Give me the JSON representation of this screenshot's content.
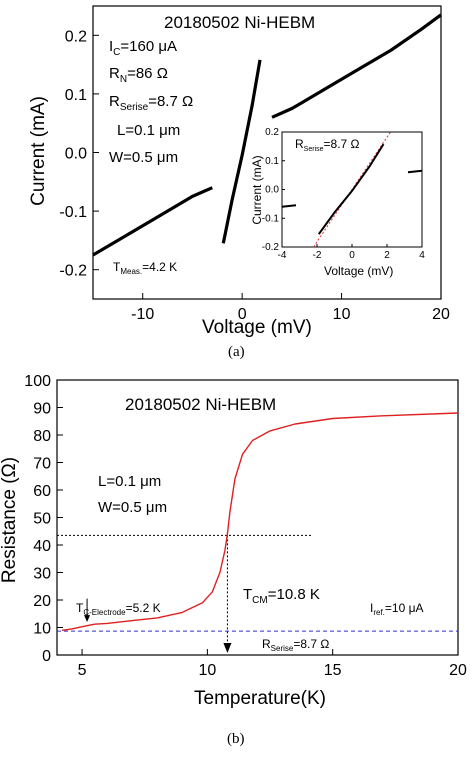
{
  "chart_data": [
    {
      "id": "a",
      "type": "line",
      "caption": "(a)",
      "title": "20180502 Ni-HEBM",
      "xlabel": "Voltage (mV)",
      "ylabel": "Current (mA)",
      "xlim": [
        -15,
        20
      ],
      "ylim": [
        -0.25,
        0.25
      ],
      "xticks": [
        -10,
        0,
        10,
        20
      ],
      "xtick_labels": [
        "-10",
        "0",
        "10",
        "20"
      ],
      "yticks": [
        -0.2,
        -0.1,
        0.0,
        0.1,
        0.2
      ],
      "ytick_labels": [
        "-0.2",
        "-0.1",
        "0.0",
        "0.1",
        "0.2"
      ],
      "grid": false,
      "annotations": {
        "ic": {
          "main": "I",
          "sub": "C",
          "rest": "=160 μA"
        },
        "rn": {
          "main": "R",
          "sub": "N",
          "rest": "=86 Ω"
        },
        "rs": {
          "main": "R",
          "sub": "Serise",
          "rest": "=8.7 Ω"
        },
        "l": "L=0.1 μm",
        "w": "W=0.5 μm",
        "tmeas": {
          "main": "T",
          "sub": "Meas.",
          "rest": "=4.2 K"
        }
      },
      "series": [
        {
          "values": [
            [
              -15,
              -0.175
            ],
            [
              -12,
              -0.145
            ],
            [
              -9,
              -0.115
            ],
            [
              -6,
              -0.085
            ],
            [
              -5,
              -0.075
            ],
            [
              -3,
              -0.06
            ]
          ]
        },
        {
          "values": [
            [
              -1.9,
              -0.155
            ],
            [
              -1,
              -0.08
            ],
            [
              0,
              -0.005
            ],
            [
              1,
              0.08
            ],
            [
              1.8,
              0.158
            ]
          ]
        },
        {
          "values": [
            [
              3,
              0.06
            ],
            [
              5,
              0.075
            ],
            [
              6,
              0.085
            ],
            [
              9,
              0.115
            ],
            [
              12,
              0.145
            ],
            [
              15,
              0.175
            ],
            [
              18,
              0.21
            ],
            [
              20,
              0.235
            ]
          ]
        }
      ],
      "inset": {
        "xlabel": "Voltage (mV)",
        "ylabel": "Current (mA)",
        "xlim": [
          -4,
          4
        ],
        "ylim": [
          -0.2,
          0.2
        ],
        "xticks": [
          -4,
          -2,
          0,
          2,
          4
        ],
        "xtick_labels": [
          "-4",
          "-2",
          "0",
          "2",
          "4"
        ],
        "yticks": [
          -0.2,
          -0.1,
          0.0,
          0.1,
          0.2
        ],
        "ytick_labels": [
          "-0.2",
          "-0.1",
          "0.0",
          "0.1",
          "0.2"
        ],
        "annotation": {
          "main": "R",
          "sub": "Serise",
          "rest": "=8.7 Ω"
        },
        "series": [
          {
            "values": [
              [
                -4,
                -0.06
              ],
              [
                -3.2,
                -0.055
              ]
            ]
          },
          {
            "values": [
              [
                -1.9,
                -0.155
              ],
              [
                -1,
                -0.08
              ],
              [
                0,
                -0.005
              ],
              [
                1,
                0.08
              ],
              [
                1.8,
                0.158
              ]
            ]
          },
          {
            "values": [
              [
                3.2,
                0.06
              ],
              [
                4,
                0.065
              ]
            ]
          }
        ],
        "fit_line": [
          [
            -2.2,
            -0.2
          ],
          [
            2.2,
            0.2
          ]
        ],
        "fit_color": "#e03030"
      }
    },
    {
      "id": "b",
      "type": "line",
      "caption": "(b)",
      "title": "20180502 Ni-HEBM",
      "xlabel": "Temperature(K)",
      "ylabel": "Resistance (Ω)",
      "xlim": [
        4,
        20
      ],
      "ylim": [
        0,
        100
      ],
      "xticks": [
        5,
        10,
        15,
        20
      ],
      "xtick_labels": [
        "5",
        "10",
        "15",
        "20"
      ],
      "yticks": [
        0,
        10,
        20,
        30,
        40,
        50,
        60,
        70,
        80,
        90,
        100
      ],
      "ytick_labels": [
        "0",
        "10",
        "20",
        "30",
        "40",
        "50",
        "60",
        "70",
        "80",
        "90",
        "100"
      ],
      "grid": false,
      "line_color": "#e02020",
      "ref_color": "#3030d0",
      "annotations": {
        "l": "L=0.1 μm",
        "w": "W=0.5 μm",
        "tcm": {
          "main": "T",
          "sub": "CM",
          "rest": "=10.8 K"
        },
        "tce": {
          "main": "T",
          "sub": "C-Electrode",
          "rest": "=5.2 K"
        },
        "iref": {
          "main": "I",
          "sub": "ref.",
          "rest": "=10 μA"
        },
        "rs": {
          "main": "R",
          "sub": "Serise",
          "rest": "=8.7 Ω"
        }
      },
      "series": [
        {
          "values": [
            [
              4.2,
              9
            ],
            [
              4.6,
              9.5
            ],
            [
              5,
              10.3
            ],
            [
              5.5,
              11.2
            ],
            [
              6,
              11.5
            ],
            [
              7,
              12.5
            ],
            [
              8,
              13.5
            ],
            [
              9,
              15.5
            ],
            [
              9.8,
              19
            ],
            [
              10.2,
              23
            ],
            [
              10.5,
              30
            ],
            [
              10.7,
              38
            ],
            [
              10.8,
              44
            ],
            [
              10.9,
              52
            ],
            [
              11.1,
              64
            ],
            [
              11.4,
              73
            ],
            [
              11.8,
              78
            ],
            [
              12.5,
              81.5
            ],
            [
              13.5,
              84
            ],
            [
              15,
              86
            ],
            [
              17,
              87
            ],
            [
              20,
              88
            ]
          ]
        }
      ],
      "reference_lines": {
        "horizontal_half": 43.5,
        "rserise": 8.7,
        "tcm_x": 10.8,
        "tce_x": 5.2
      }
    }
  ]
}
